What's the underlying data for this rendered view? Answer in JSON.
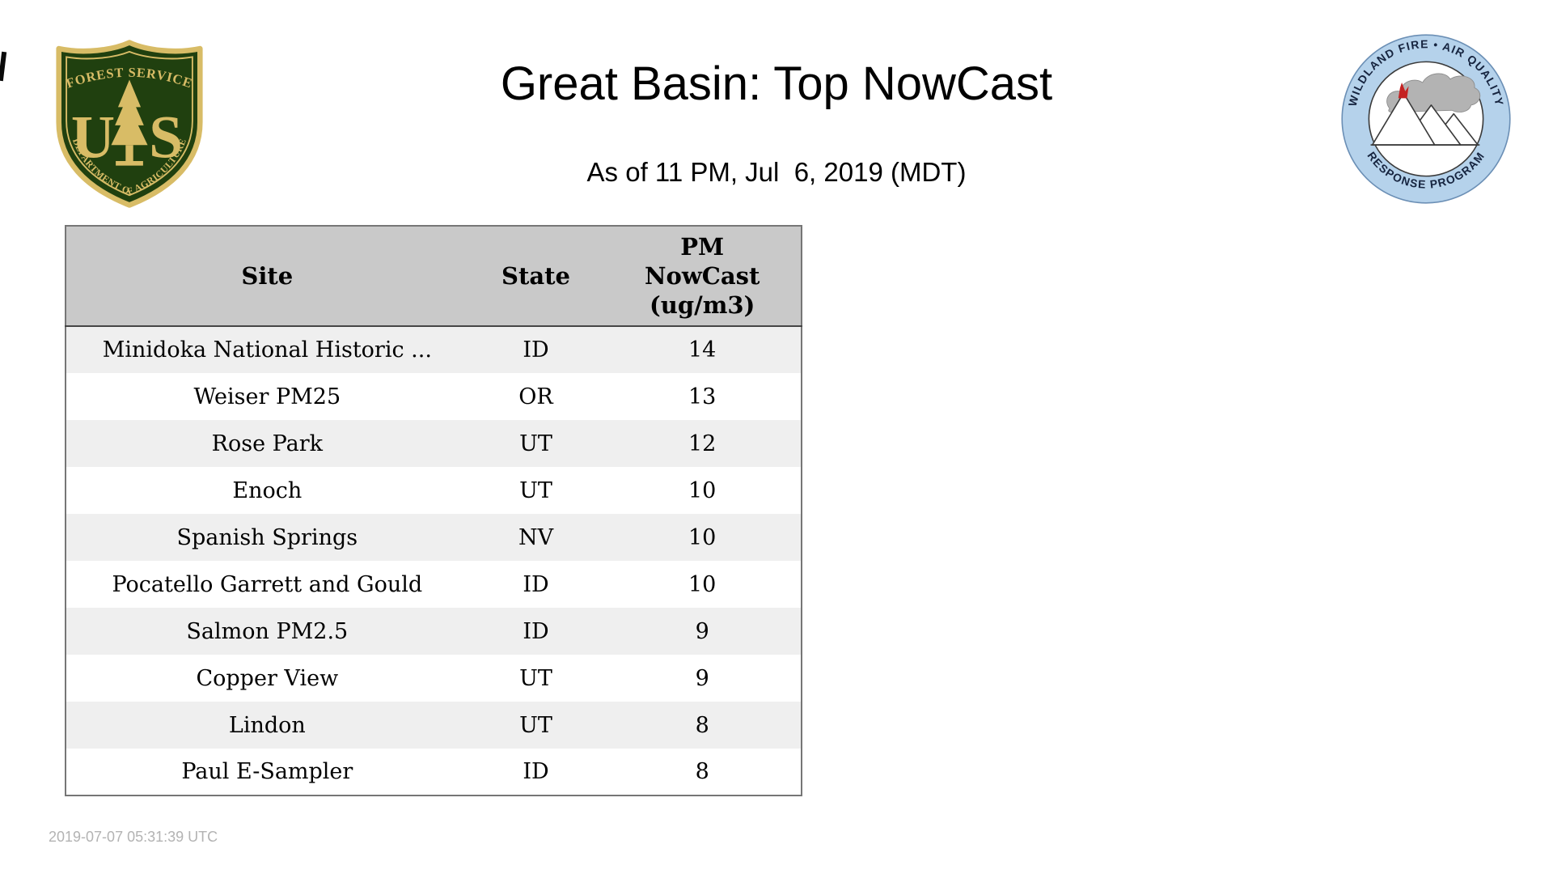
{
  "page": {
    "title": "Great Basin: Top NowCast",
    "subtitle": "As of 11 PM, Jul  6, 2019 (MDT)"
  },
  "logos": {
    "forest_service": {
      "arc_top": "FOREST SERVICE",
      "letter_u": "U",
      "letter_s": "S",
      "arc_bottom": "DEPARTMENT OF AGRICULTURE"
    },
    "response_program": {
      "arc_top": "WILDLAND FIRE • AIR QUALITY",
      "arc_bottom": "RESPONSE PROGRAM"
    }
  },
  "table": {
    "columns": [
      "Site",
      "State",
      "PM\nNowCast\n(ug/m3)"
    ],
    "rows": [
      {
        "site": "Minidoka National Historic ...",
        "state": "ID",
        "value": "14"
      },
      {
        "site": "Weiser PM25",
        "state": "OR",
        "value": "13"
      },
      {
        "site": "Rose Park",
        "state": "UT",
        "value": "12"
      },
      {
        "site": "Enoch",
        "state": "UT",
        "value": "10"
      },
      {
        "site": "Spanish Springs",
        "state": "NV",
        "value": "10"
      },
      {
        "site": "Pocatello Garrett and Gould",
        "state": "ID",
        "value": "10"
      },
      {
        "site": "Salmon PM2.5",
        "state": "ID",
        "value": "9"
      },
      {
        "site": "Copper View",
        "state": "UT",
        "value": "9"
      },
      {
        "site": "Lindon",
        "state": "UT",
        "value": "8"
      },
      {
        "site": "Paul E-Sampler",
        "state": "ID",
        "value": "8"
      }
    ]
  },
  "footer": {
    "timestamp": "2019-07-07 05:31:39 UTC"
  },
  "colors": {
    "header_bg": "#c9c9c9",
    "row_alt_bg": "#efefef",
    "table_border": "#767676",
    "text_muted": "#b3b3b3",
    "fs_green": "#20400f",
    "fs_gold": "#d8bc66",
    "ring_blue": "#b5d2eb",
    "ring_text": "#16243f",
    "flame_red": "#c42222",
    "smoke_gray": "#b3b3b3"
  },
  "chart_data": {
    "type": "table",
    "title": "Great Basin: Top NowCast",
    "subtitle": "As of 11 PM, Jul  6, 2019 (MDT)",
    "columns": [
      "Site",
      "State",
      "PM NowCast (ug/m3)"
    ],
    "rows": [
      [
        "Minidoka National Historic ...",
        "ID",
        14
      ],
      [
        "Weiser PM25",
        "OR",
        13
      ],
      [
        "Rose Park",
        "UT",
        12
      ],
      [
        "Enoch",
        "UT",
        10
      ],
      [
        "Spanish Springs",
        "NV",
        10
      ],
      [
        "Pocatello Garrett and Gould",
        "ID",
        10
      ],
      [
        "Salmon PM2.5",
        "ID",
        9
      ],
      [
        "Copper View",
        "UT",
        9
      ],
      [
        "Lindon",
        "UT",
        8
      ],
      [
        "Paul E-Sampler",
        "ID",
        8
      ]
    ],
    "generated_timestamp": "2019-07-07 05:31:39 UTC"
  }
}
